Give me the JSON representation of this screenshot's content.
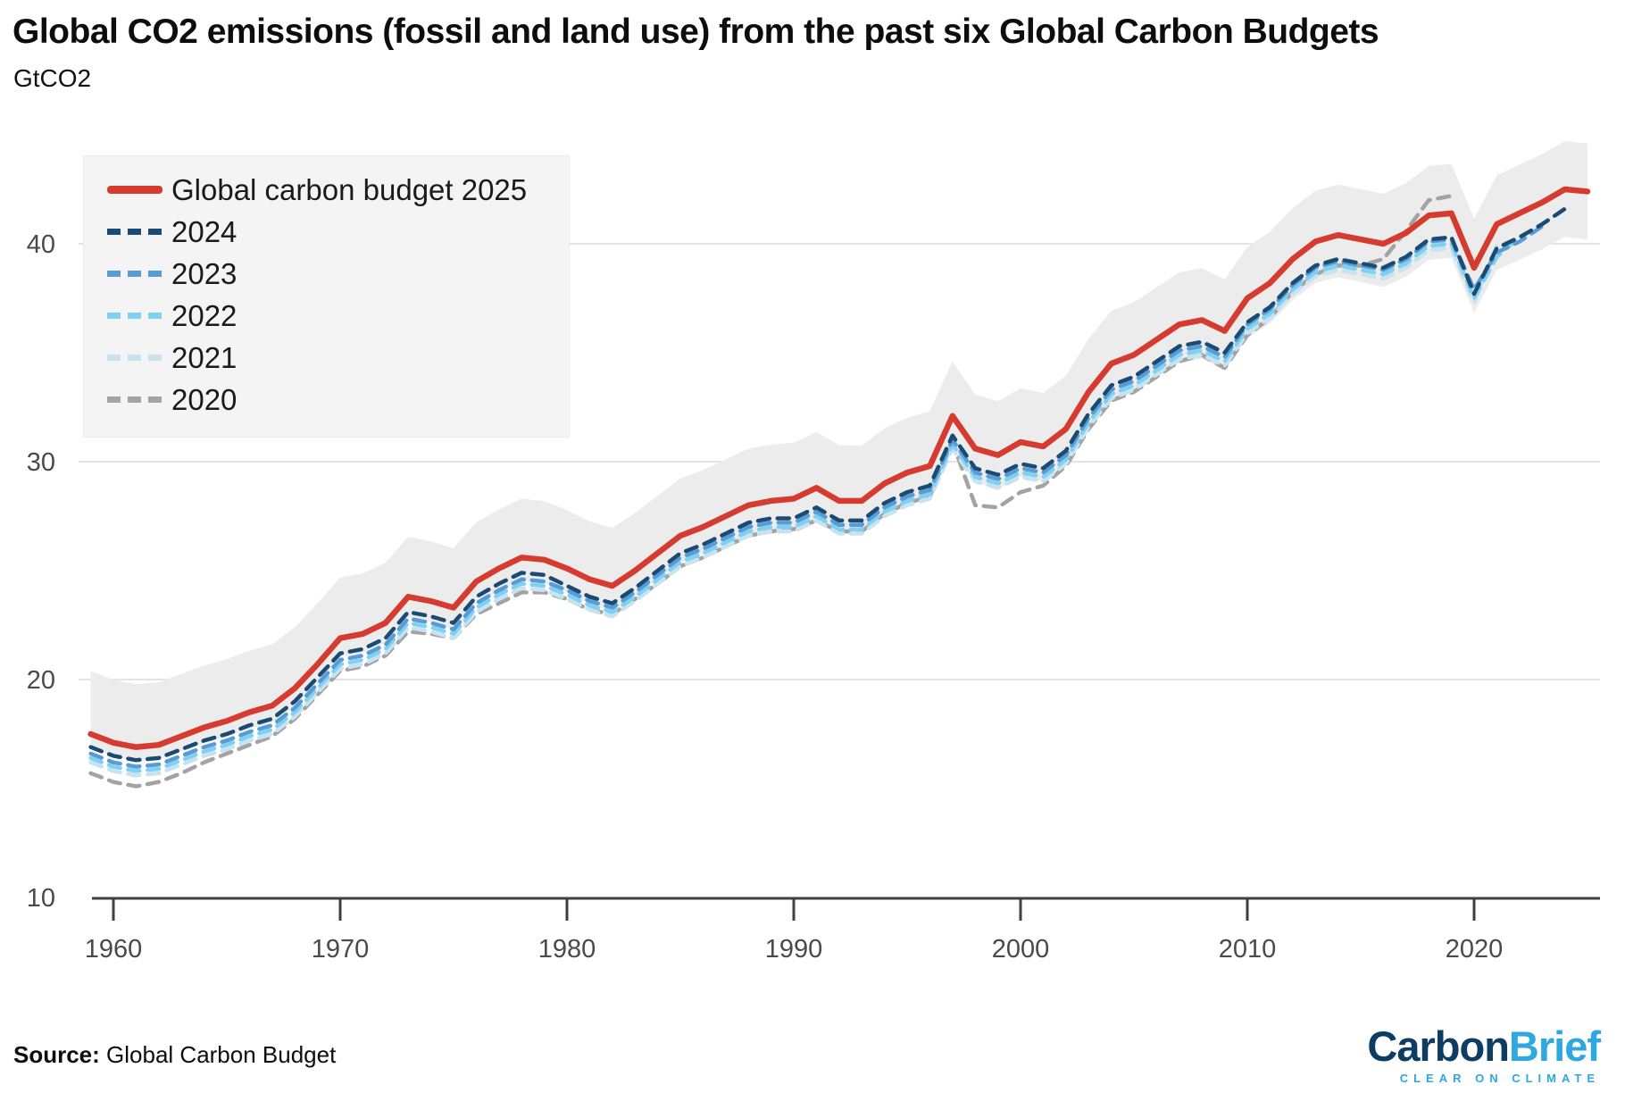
{
  "header": {
    "title": "Global CO2 emissions (fossil and land use) from the past six Global Carbon Budgets",
    "subtitle": "GtCO2"
  },
  "chart_data": {
    "type": "line",
    "title": "Global CO2 emissions (fossil and land use) from the past six Global Carbon Budgets",
    "ylabel": "GtCO2",
    "xlabel": "",
    "ylim": [
      10,
      45.5
    ],
    "xlim": [
      1958.5,
      2026
    ],
    "yticks": [
      10,
      20,
      30,
      40
    ],
    "xticks": [
      1960,
      1970,
      1980,
      1990,
      2000,
      2010,
      2020
    ],
    "grid": "horizontal",
    "legend_position": "top-left",
    "band": {
      "name": "uncertainty-range",
      "color": "#ececec",
      "follows_series": "Global carbon budget 2025",
      "upper_offset_start": 2.9,
      "upper_offset_end": 2.2,
      "lower_offset_start": 0.6,
      "lower_offset_end": 2.2
    },
    "series": [
      {
        "name": "Global carbon budget 2025",
        "color": "#d63b30",
        "style": "solid",
        "start_year": 1959,
        "values": [
          17.5,
          17.1,
          16.9,
          17.0,
          17.4,
          17.8,
          18.1,
          18.5,
          18.8,
          19.6,
          20.7,
          21.9,
          22.1,
          22.6,
          23.8,
          23.6,
          23.3,
          24.5,
          25.1,
          25.6,
          25.5,
          25.1,
          24.6,
          24.3,
          25.0,
          25.8,
          26.6,
          27.0,
          27.5,
          28.0,
          28.2,
          28.3,
          28.8,
          28.2,
          28.2,
          29.0,
          29.5,
          29.8,
          32.1,
          30.6,
          30.3,
          30.9,
          30.7,
          31.5,
          33.2,
          34.5,
          34.9,
          35.6,
          36.3,
          36.5,
          36.0,
          37.5,
          38.2,
          39.3,
          40.1,
          40.4,
          40.2,
          40.0,
          40.5,
          41.3,
          41.4,
          38.9,
          40.9,
          41.4,
          41.9,
          42.5,
          42.4
        ]
      },
      {
        "name": "2024",
        "color": "#1b4a72",
        "style": "dashed",
        "start_year": 1959,
        "values": [
          16.9,
          16.5,
          16.3,
          16.4,
          16.8,
          17.2,
          17.5,
          17.9,
          18.2,
          19.0,
          20.1,
          21.2,
          21.4,
          21.9,
          23.1,
          22.9,
          22.6,
          23.8,
          24.4,
          24.9,
          24.8,
          24.3,
          23.8,
          23.5,
          24.2,
          25.0,
          25.8,
          26.2,
          26.7,
          27.2,
          27.4,
          27.4,
          27.9,
          27.3,
          27.3,
          28.1,
          28.6,
          28.9,
          31.2,
          29.7,
          29.4,
          29.9,
          29.7,
          30.5,
          32.2,
          33.5,
          33.9,
          34.6,
          35.3,
          35.5,
          35.0,
          36.4,
          37.1,
          38.2,
          39.0,
          39.3,
          39.1,
          38.9,
          39.4,
          40.2,
          40.3,
          37.7,
          39.8,
          40.3,
          40.9,
          41.6
        ]
      },
      {
        "name": "2023",
        "color": "#5b9bd5",
        "style": "dashed",
        "start_year": 1959,
        "values": [
          16.6,
          16.2,
          16.0,
          16.1,
          16.5,
          16.9,
          17.2,
          17.6,
          17.9,
          18.7,
          19.8,
          20.9,
          21.1,
          21.6,
          22.8,
          22.6,
          22.3,
          23.5,
          24.1,
          24.6,
          24.5,
          24.1,
          23.6,
          23.3,
          24.0,
          24.8,
          25.6,
          26.0,
          26.5,
          27.0,
          27.2,
          27.2,
          27.7,
          27.1,
          27.1,
          27.9,
          28.4,
          28.7,
          31.0,
          29.5,
          29.2,
          29.7,
          29.5,
          30.3,
          32.0,
          33.3,
          33.7,
          34.4,
          35.1,
          35.3,
          34.8,
          36.3,
          37.0,
          38.1,
          38.9,
          39.2,
          39.0,
          38.8,
          39.3,
          40.1,
          40.2,
          37.9,
          39.6,
          40.1,
          40.8
        ]
      },
      {
        "name": "2022",
        "color": "#7fd1f2",
        "style": "dashed",
        "start_year": 1959,
        "values": [
          16.4,
          16.0,
          15.8,
          15.9,
          16.3,
          16.7,
          17.0,
          17.4,
          17.7,
          18.5,
          19.6,
          20.7,
          20.9,
          21.4,
          22.6,
          22.4,
          22.1,
          23.3,
          23.9,
          24.4,
          24.3,
          23.9,
          23.4,
          23.1,
          23.8,
          24.6,
          25.4,
          25.8,
          26.3,
          26.8,
          27.0,
          27.0,
          27.5,
          26.9,
          26.9,
          27.7,
          28.2,
          28.5,
          30.8,
          29.3,
          29.0,
          29.5,
          29.3,
          30.1,
          31.8,
          33.1,
          33.5,
          34.2,
          34.9,
          35.1,
          34.6,
          36.1,
          36.8,
          37.9,
          38.7,
          39.0,
          38.8,
          38.6,
          39.1,
          39.9,
          40.0,
          37.5,
          39.4,
          40.3
        ]
      },
      {
        "name": "2021",
        "color": "#c9e2f0",
        "style": "dashed",
        "start_year": 1959,
        "values": [
          16.2,
          15.8,
          15.6,
          15.7,
          16.1,
          16.5,
          16.8,
          17.2,
          17.5,
          18.3,
          19.4,
          20.5,
          20.7,
          21.2,
          22.4,
          22.2,
          21.9,
          23.1,
          23.7,
          24.2,
          24.1,
          23.7,
          23.2,
          22.9,
          23.6,
          24.4,
          25.2,
          25.6,
          26.1,
          26.6,
          26.8,
          26.8,
          27.3,
          26.7,
          26.7,
          27.5,
          28.0,
          28.3,
          30.6,
          29.1,
          28.8,
          29.3,
          29.1,
          29.9,
          31.6,
          32.9,
          33.3,
          34.0,
          34.7,
          34.9,
          34.4,
          35.9,
          36.6,
          37.7,
          38.5,
          38.8,
          38.6,
          38.4,
          38.9,
          39.7,
          39.8,
          37.3,
          39.9
        ]
      },
      {
        "name": "2020",
        "color": "#a3a3a3",
        "style": "dashed",
        "start_year": 1959,
        "values": [
          15.7,
          15.3,
          15.1,
          15.3,
          15.7,
          16.2,
          16.6,
          17.0,
          17.4,
          18.2,
          19.3,
          20.4,
          20.6,
          21.1,
          22.2,
          22.1,
          21.9,
          23.0,
          23.5,
          24.0,
          24.0,
          23.7,
          23.2,
          23.0,
          23.7,
          24.4,
          25.2,
          25.6,
          26.1,
          26.6,
          26.8,
          26.9,
          27.3,
          26.8,
          26.8,
          27.6,
          28.1,
          28.4,
          30.9,
          28.0,
          27.9,
          28.6,
          28.9,
          29.8,
          31.5,
          32.8,
          33.2,
          33.9,
          34.6,
          34.9,
          34.3,
          35.8,
          36.6,
          37.8,
          38.6,
          39.0,
          39.0,
          39.3,
          40.6,
          42.0,
          42.2
        ]
      }
    ],
    "axis": {
      "axis_color": "#3f3f3f",
      "grid_color": "#e3e3e3",
      "label_color": "#4a4a4a"
    }
  },
  "footer": {
    "source_label": "Source:",
    "source_text": " Global Carbon Budget"
  },
  "logo": {
    "word1": "Carbon",
    "word2": "Brief",
    "tagline": "CLEAR ON CLIMATE",
    "color1": "#0d3d62",
    "color2": "#2fa8e1"
  }
}
